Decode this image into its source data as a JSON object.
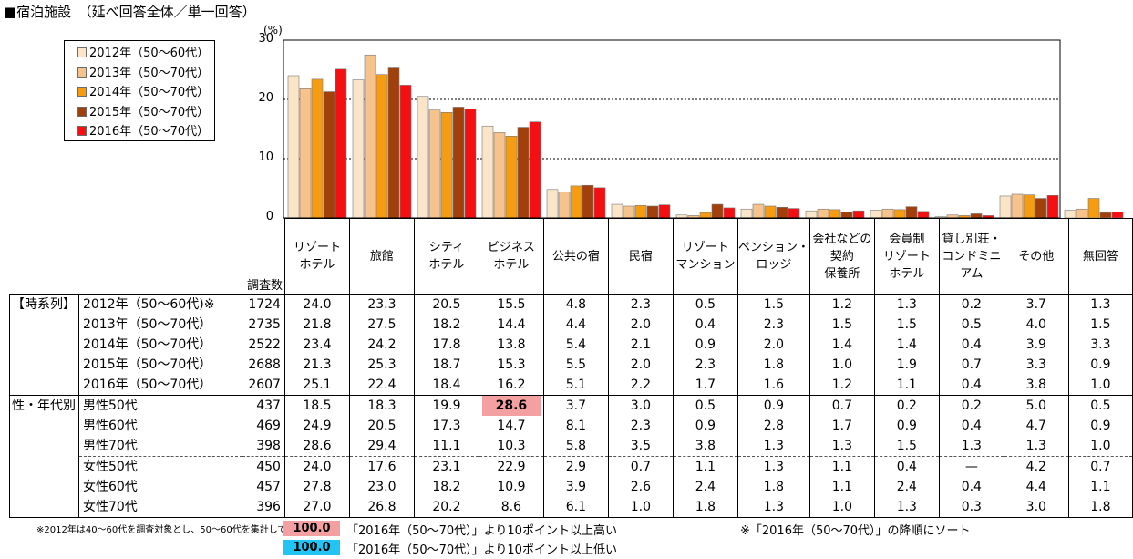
{
  "title": "■宿泊施設　（延べ回答全体／単一回答）",
  "chart_data": {
    "type": "bar",
    "unit_label": "(%)",
    "ylim": [
      0,
      30
    ],
    "yticks": [
      0,
      10,
      20,
      30
    ],
    "categories": [
      "リゾート\nホテル",
      "旅館",
      "シティ\nホテル",
      "ビジネス\nホテル",
      "公共の宿",
      "民宿",
      "リゾート\nマンション",
      "ペンション・\nロッジ",
      "会社などの\n契約\n保養所",
      "会員制\nリゾート\nホテル",
      "貸し別荘・\nコンドミニ\nアム",
      "その他",
      "無回答"
    ],
    "series": [
      {
        "name": "2012年（50～60代）",
        "color": "#fbe5c8",
        "values": [
          24.0,
          23.3,
          20.5,
          15.5,
          4.8,
          2.3,
          0.5,
          1.5,
          1.2,
          1.3,
          0.2,
          3.7,
          1.3
        ]
      },
      {
        "name": "2013年（50～70代）",
        "color": "#f7c38d",
        "values": [
          21.8,
          27.5,
          18.2,
          14.4,
          4.4,
          2.0,
          0.4,
          2.3,
          1.5,
          1.5,
          0.5,
          4.0,
          1.5
        ]
      },
      {
        "name": "2014年（50～70代）",
        "color": "#f59c13",
        "values": [
          23.4,
          24.2,
          17.8,
          13.8,
          5.4,
          2.1,
          0.9,
          2.0,
          1.4,
          1.4,
          0.4,
          3.9,
          3.3
        ]
      },
      {
        "name": "2015年（50～70代）",
        "color": "#a1400b",
        "values": [
          21.3,
          25.3,
          18.7,
          15.3,
          5.5,
          2.0,
          2.3,
          1.8,
          1.0,
          1.9,
          0.7,
          3.3,
          0.9
        ]
      },
      {
        "name": "2016年（50～70代）",
        "color": "#f40f12",
        "values": [
          25.1,
          22.4,
          18.4,
          16.2,
          5.1,
          2.2,
          1.7,
          1.6,
          1.2,
          1.1,
          0.4,
          3.8,
          1.0
        ]
      }
    ]
  },
  "table": {
    "n_header": "調査数",
    "groups": [
      {
        "label": "【時系列】",
        "rows": [
          {
            "label": "2012年（50～60代)※",
            "n": "1724",
            "values": [
              "24.0",
              "23.3",
              "20.5",
              "15.5",
              "4.8",
              "2.3",
              "0.5",
              "1.5",
              "1.2",
              "1.3",
              "0.2",
              "3.7",
              "1.3"
            ]
          },
          {
            "label": "2013年（50～70代）",
            "n": "2735",
            "values": [
              "21.8",
              "27.5",
              "18.2",
              "14.4",
              "4.4",
              "2.0",
              "0.4",
              "2.3",
              "1.5",
              "1.5",
              "0.5",
              "4.0",
              "1.5"
            ]
          },
          {
            "label": "2014年（50～70代）",
            "n": "2522",
            "values": [
              "23.4",
              "24.2",
              "17.8",
              "13.8",
              "5.4",
              "2.1",
              "0.9",
              "2.0",
              "1.4",
              "1.4",
              "0.4",
              "3.9",
              "3.3"
            ]
          },
          {
            "label": "2015年（50～70代）",
            "n": "2688",
            "values": [
              "21.3",
              "25.3",
              "18.7",
              "15.3",
              "5.5",
              "2.0",
              "2.3",
              "1.8",
              "1.0",
              "1.9",
              "0.7",
              "3.3",
              "0.9"
            ]
          },
          {
            "label": "2016年（50～70代）",
            "n": "2607",
            "values": [
              "25.1",
              "22.4",
              "18.4",
              "16.2",
              "5.1",
              "2.2",
              "1.7",
              "1.6",
              "1.2",
              "1.1",
              "0.4",
              "3.8",
              "1.0"
            ]
          }
        ]
      },
      {
        "label": "性・年代別",
        "rows": [
          {
            "label": "男性50代",
            "n": "437",
            "values": [
              "18.5",
              "18.3",
              "19.9",
              "28.6",
              "3.7",
              "3.0",
              "0.5",
              "0.9",
              "0.7",
              "0.2",
              "0.2",
              "5.0",
              "0.5"
            ],
            "highlight_index": 3
          },
          {
            "label": "男性60代",
            "n": "469",
            "values": [
              "24.9",
              "20.5",
              "17.3",
              "14.7",
              "8.1",
              "2.3",
              "0.9",
              "2.8",
              "1.7",
              "0.9",
              "0.4",
              "4.7",
              "0.9"
            ]
          },
          {
            "label": "男性70代",
            "n": "398",
            "values": [
              "28.6",
              "29.4",
              "11.1",
              "10.3",
              "5.8",
              "3.5",
              "3.8",
              "1.3",
              "1.3",
              "1.5",
              "1.3",
              "1.3",
              "1.0"
            ]
          },
          {
            "label": "女性50代",
            "n": "450",
            "values": [
              "24.0",
              "17.6",
              "23.1",
              "22.9",
              "2.9",
              "0.7",
              "1.1",
              "1.3",
              "1.1",
              "0.4",
              "—",
              "4.2",
              "0.7"
            ]
          },
          {
            "label": "女性60代",
            "n": "457",
            "values": [
              "27.8",
              "23.0",
              "18.2",
              "10.9",
              "3.9",
              "2.6",
              "2.4",
              "1.8",
              "1.1",
              "2.4",
              "0.4",
              "4.4",
              "1.1"
            ]
          },
          {
            "label": "女性70代",
            "n": "396",
            "values": [
              "27.0",
              "26.8",
              "20.2",
              "8.6",
              "6.1",
              "1.0",
              "1.8",
              "1.3",
              "1.0",
              "1.3",
              "0.3",
              "3.0",
              "1.8"
            ]
          }
        ]
      }
    ]
  },
  "notes": {
    "survey_note": "※2012年は40～60代を調査対象とし、50～60代を集計している",
    "high_key_value": "100.0",
    "high_key_text": "「2016年（50～70代）」より10ポイント以上高い",
    "low_key_value": "100.0",
    "low_key_text": "「2016年（50～70代）」より10ポイント以上低い",
    "sort_note": "※「2016年（50～70代）」の降順にソート",
    "high_color": "#f4a0a0",
    "low_color": "#22c4f4"
  }
}
